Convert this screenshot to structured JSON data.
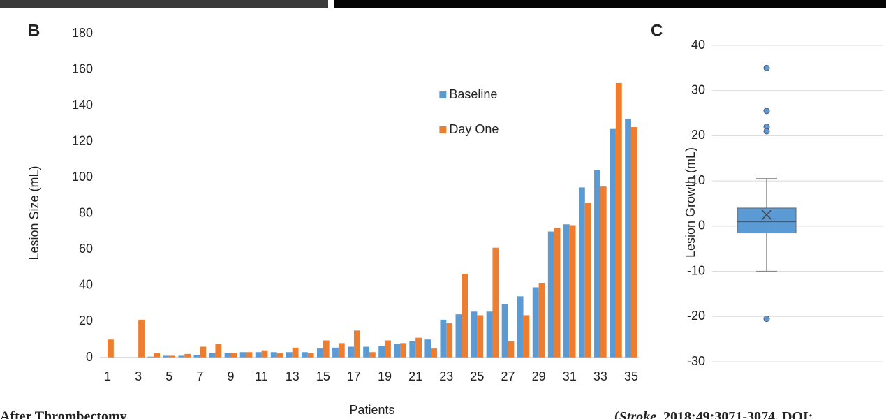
{
  "chart_data": [
    {
      "type": "bar",
      "panel": "B",
      "y_label": "Lesion Size (mL)",
      "x_label": "Patients",
      "categories": [
        "1",
        null,
        "3",
        null,
        "5",
        null,
        "7",
        null,
        "9",
        null,
        "11",
        null,
        "13",
        null,
        "15",
        null,
        "17",
        null,
        "19",
        null,
        "21",
        null,
        "23",
        null,
        "25",
        null,
        "27",
        null,
        "29",
        null,
        "31",
        null,
        "33",
        null,
        "35"
      ],
      "series": [
        {
          "name": "Baseline",
          "color": "#5b9bd5",
          "values": [
            0,
            0,
            0,
            0.5,
            1,
            1,
            1.5,
            2.5,
            2.5,
            3,
            3,
            3,
            3,
            3,
            5,
            5.5,
            6,
            6,
            6.5,
            7.5,
            9,
            10,
            21,
            24,
            25.5,
            25.5,
            29.5,
            34,
            39,
            70,
            74,
            94.5,
            104,
            127,
            132.5
          ]
        },
        {
          "name": "Day One",
          "color": "#ed7d31",
          "values": [
            10,
            0,
            21,
            2.5,
            1,
            2,
            6,
            7.5,
            2.5,
            3,
            4,
            2.5,
            5.5,
            2.5,
            9.5,
            8,
            15,
            3,
            9.5,
            8,
            11,
            5,
            19,
            46.5,
            23.5,
            61,
            9,
            23.5,
            41.5,
            72,
            73.5,
            86,
            95,
            152.5,
            128
          ]
        }
      ],
      "ylim": [
        0,
        180
      ],
      "yticks": [
        0,
        20,
        40,
        60,
        80,
        100,
        120,
        140,
        160,
        180
      ],
      "grid": false,
      "legend": "top"
    },
    {
      "type": "box",
      "panel": "C",
      "y_label": "Lesion Growth (mL)",
      "series": [
        {
          "color": "#5b9bd5",
          "min": -10,
          "q1": -1.5,
          "median": 1,
          "q3": 4,
          "max": 10.5,
          "mean": 2.5,
          "outliers": [
            35,
            25.5,
            22,
            21,
            -20.5
          ]
        }
      ],
      "ylim": [
        -30,
        40
      ],
      "yticks": [
        -30,
        -20,
        -10,
        0,
        10,
        20,
        30,
        40
      ],
      "grid": true
    }
  ],
  "caption": "After Thrombectomy",
  "citation": {
    "open": "(",
    "journal": "Stroke",
    "rest": ". 2018;49:3071-3074. DOI:"
  }
}
